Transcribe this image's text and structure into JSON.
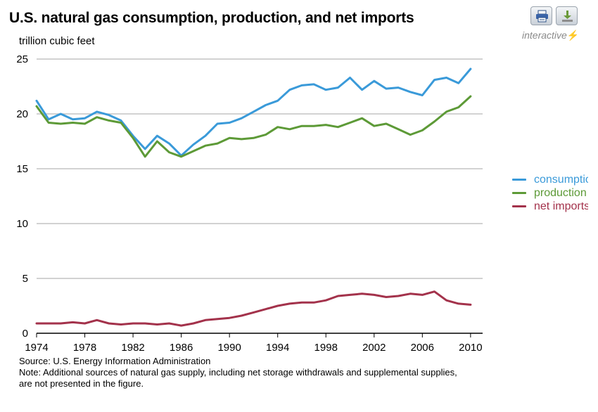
{
  "title": "U.S. natural gas consumption, production, and net imports",
  "unit": "trillion cubic feet",
  "toolbar": {
    "print_icon": "print-icon",
    "download_icon": "download-icon",
    "interactive_label": "interactive",
    "interactive_icon": "lightning-bolt-icon"
  },
  "source": {
    "line1": "Source:  U.S. Energy Information Administration",
    "line2": "Note: Additional sources of natural gas supply, including net storage withdrawals and supplemental supplies,",
    "line3": "are not presented in the figure."
  },
  "legend": [
    {
      "label": "consumptio",
      "color": "#3a9ad9"
    },
    {
      "label": "production",
      "color": "#5d9a37"
    },
    {
      "label": "net imports",
      "color": "#a3324b"
    }
  ],
  "chart_data": {
    "type": "line",
    "x": [
      1974,
      1975,
      1976,
      1977,
      1978,
      1979,
      1980,
      1981,
      1982,
      1983,
      1984,
      1985,
      1986,
      1987,
      1988,
      1989,
      1990,
      1991,
      1992,
      1993,
      1994,
      1995,
      1996,
      1997,
      1998,
      1999,
      2000,
      2001,
      2002,
      2003,
      2004,
      2005,
      2006,
      2007,
      2008,
      2009,
      2010
    ],
    "series": [
      {
        "name": "consumptio",
        "color": "#3a9ad9",
        "values": [
          21.2,
          19.5,
          20.0,
          19.5,
          19.6,
          20.2,
          19.9,
          19.4,
          18.0,
          16.8,
          18.0,
          17.3,
          16.2,
          17.2,
          18.0,
          19.1,
          19.2,
          19.6,
          20.2,
          20.8,
          21.2,
          22.2,
          22.6,
          22.7,
          22.2,
          22.4,
          23.3,
          22.2,
          23.0,
          22.3,
          22.4,
          22.0,
          21.7,
          23.1,
          23.3,
          22.8,
          24.1
        ]
      },
      {
        "name": "production",
        "color": "#5d9a37",
        "values": [
          20.7,
          19.2,
          19.1,
          19.2,
          19.1,
          19.7,
          19.4,
          19.2,
          17.8,
          16.1,
          17.5,
          16.5,
          16.1,
          16.6,
          17.1,
          17.3,
          17.8,
          17.7,
          17.8,
          18.1,
          18.8,
          18.6,
          18.9,
          18.9,
          19.0,
          18.8,
          19.2,
          19.6,
          18.9,
          19.1,
          18.6,
          18.1,
          18.5,
          19.3,
          20.2,
          20.6,
          21.6
        ]
      },
      {
        "name": "net imports",
        "color": "#a3324b",
        "values": [
          0.9,
          0.9,
          0.9,
          1.0,
          0.9,
          1.2,
          0.9,
          0.8,
          0.9,
          0.9,
          0.8,
          0.9,
          0.7,
          0.9,
          1.2,
          1.3,
          1.4,
          1.6,
          1.9,
          2.2,
          2.5,
          2.7,
          2.8,
          2.8,
          3.0,
          3.4,
          3.5,
          3.6,
          3.5,
          3.3,
          3.4,
          3.6,
          3.5,
          3.8,
          3.0,
          2.7,
          2.6
        ]
      }
    ],
    "xlim": [
      1974,
      2011
    ],
    "ylim": [
      0,
      25
    ],
    "yticks": [
      0,
      5,
      10,
      15,
      20,
      25
    ],
    "xticks": [
      1974,
      1978,
      1982,
      1986,
      1990,
      1994,
      1998,
      2002,
      2006,
      2010
    ],
    "grid": true,
    "legend_position": "right"
  }
}
